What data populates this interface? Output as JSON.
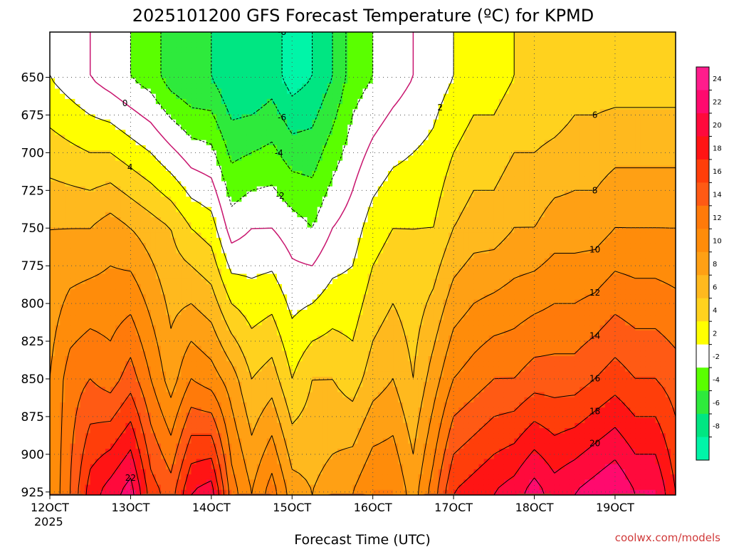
{
  "chart_data": {
    "type": "heatmap",
    "title": "2025101200 GFS Forecast Temperature (ºC) for KPMD",
    "xlabel": "Forecast Time (UTC)",
    "credit": "coolwx.com/models",
    "year_label": "2025",
    "x_ticks": [
      "12OCT",
      "13OCT",
      "14OCT",
      "15OCT",
      "16OCT",
      "17OCT",
      "18OCT",
      "19OCT"
    ],
    "x_tick_hours": [
      0,
      24,
      48,
      72,
      96,
      120,
      144,
      168
    ],
    "xlim_hours": [
      0,
      186
    ],
    "y_ticks": [
      650,
      675,
      700,
      725,
      750,
      775,
      800,
      825,
      850,
      875,
      900,
      925
    ],
    "ylim_hpa": [
      927,
      620
    ],
    "y_axis": "pressure (hPa), decreasing upward",
    "grid": "dotted",
    "colorbar": {
      "labels": [
        "24",
        "22",
        "20",
        "18",
        "16",
        "14",
        "12",
        "10",
        "8",
        "6",
        "4",
        "2",
        "-2",
        "-4",
        "-6",
        "-8"
      ],
      "bins": [
        {
          "min": 24,
          "max": 26,
          "color": "#ff1c8c"
        },
        {
          "min": 22,
          "max": 24,
          "color": "#ff0a6e"
        },
        {
          "min": 20,
          "max": 22,
          "color": "#ff0a3c"
        },
        {
          "min": 18,
          "max": 20,
          "color": "#ff1414"
        },
        {
          "min": 16,
          "max": 18,
          "color": "#ff3e0a"
        },
        {
          "min": 14,
          "max": 16,
          "color": "#ff5a14"
        },
        {
          "min": 12,
          "max": 14,
          "color": "#ff7a0a"
        },
        {
          "min": 10,
          "max": 12,
          "color": "#ff8c0a"
        },
        {
          "min": 8,
          "max": 10,
          "color": "#ffa014"
        },
        {
          "min": 6,
          "max": 8,
          "color": "#ffb91e"
        },
        {
          "min": 4,
          "max": 6,
          "color": "#ffd21e"
        },
        {
          "min": 2,
          "max": 4,
          "color": "#ffff00"
        },
        {
          "min": -2,
          "max": 2,
          "color": "#ffffff"
        },
        {
          "min": -4,
          "max": -2,
          "color": "#5aff00"
        },
        {
          "min": -6,
          "max": -4,
          "color": "#2eea3c"
        },
        {
          "min": -8,
          "max": -6,
          "color": "#00e682"
        },
        {
          "min": -10,
          "max": -8,
          "color": "#00f5a8"
        }
      ]
    },
    "terrain_color": "#a0522d",
    "surface_pressure_hpa": 928,
    "series": [
      {
        "hours": [
          0,
          6,
          12,
          18,
          24,
          30,
          36,
          42,
          48,
          54,
          60,
          66,
          72,
          78,
          84,
          90,
          96,
          102,
          108,
          114,
          120,
          126,
          132,
          138,
          144,
          150,
          156,
          162,
          168,
          174,
          180,
          186
        ],
        "level_hpa": 925,
        "values": [
          10,
          14,
          19,
          21,
          23,
          17,
          15,
          20,
          21,
          13,
          10,
          13,
          9,
          8,
          9,
          10,
          12,
          12,
          9,
          13,
          18,
          19,
          20,
          21,
          23,
          21,
          22,
          23,
          24,
          22,
          22,
          18
        ]
      },
      {
        "hours": [
          0,
          6,
          12,
          18,
          24,
          30,
          36,
          42,
          48,
          54,
          60,
          66,
          72,
          78,
          84,
          90,
          96,
          102,
          108,
          114,
          120,
          126,
          132,
          138,
          144,
          150,
          156,
          162,
          168,
          174,
          180,
          186
        ],
        "level_hpa": 850,
        "values": [
          10,
          13,
          14,
          13,
          15,
          12,
          9,
          12,
          11,
          9,
          6,
          7,
          4,
          6,
          6,
          5,
          7,
          8,
          6,
          9,
          12,
          13,
          14,
          14,
          15,
          15,
          15,
          16,
          17,
          16,
          16,
          15
        ]
      },
      {
        "hours": [
          0,
          6,
          12,
          18,
          24,
          30,
          36,
          42,
          48,
          54,
          60,
          66,
          72,
          78,
          84,
          90,
          96,
          102,
          108,
          114,
          120,
          126,
          132,
          138,
          144,
          150,
          156,
          162,
          168,
          174,
          180,
          186
        ],
        "level_hpa": 750,
        "values": [
          8,
          8,
          8,
          9,
          8,
          7,
          6,
          4,
          3,
          -1,
          0,
          0,
          -1,
          -2,
          0,
          1,
          3,
          4,
          4,
          4,
          6,
          7,
          7,
          8,
          8,
          9,
          9,
          9,
          10,
          10,
          10,
          10
        ]
      },
      {
        "hours": [
          0,
          6,
          12,
          18,
          24,
          30,
          36,
          42,
          48,
          54,
          60,
          66,
          72,
          78,
          84,
          90,
          96,
          102,
          108,
          114,
          120,
          126,
          132,
          138,
          144,
          150,
          156,
          162,
          168,
          174,
          180,
          186
        ],
        "level_hpa": 650,
        "values": [
          2,
          1,
          0,
          -1,
          -2,
          -3,
          -5,
          -6,
          -6,
          -8,
          -8,
          -7,
          -9,
          -8,
          -6,
          -3,
          -2,
          -1,
          0,
          1,
          2,
          3,
          3,
          4,
          4,
          4,
          5,
          5,
          5,
          5,
          5,
          5
        ]
      }
    ]
  }
}
